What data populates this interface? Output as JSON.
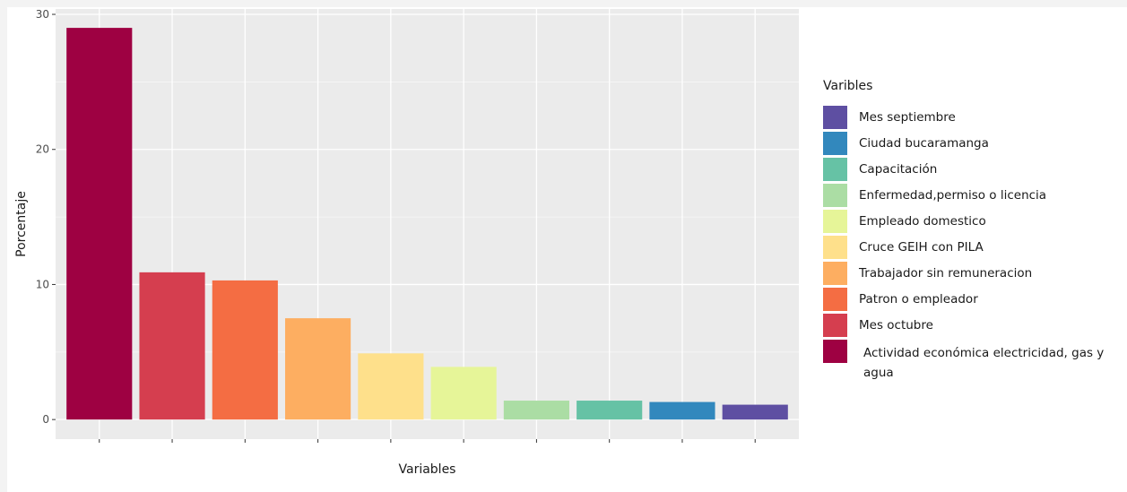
{
  "chart_data": {
    "type": "bar",
    "xlabel": "Variables",
    "ylabel": "Porcentaje",
    "ylim": [
      0,
      30
    ],
    "yticks": [
      0,
      10,
      20,
      30
    ],
    "grid": true,
    "legend": {
      "title": "Varibles",
      "placement": "right"
    },
    "categories": [
      "Actividad económica electricidad, gas y agua",
      "Mes octubre",
      "Patron o empleador",
      "Trabajador sin remuneracion",
      "Cruce GEIH con PILA",
      "Empleado domestico",
      "Enfermedad,permiso o licencia",
      "Capacitación",
      "Ciudad bucaramanga",
      "Mes septiembre"
    ],
    "values": [
      29.0,
      10.9,
      10.3,
      7.5,
      4.9,
      3.9,
      1.4,
      1.4,
      1.3,
      1.1
    ],
    "colors": [
      "#9e0142",
      "#d53e4f",
      "#f46d43",
      "#fdae61",
      "#fee08b",
      "#e6f598",
      "#abdda4",
      "#66c2a5",
      "#3288bd",
      "#5e4fa2"
    ],
    "legend_order": [
      9,
      8,
      7,
      6,
      5,
      4,
      3,
      2,
      1,
      0
    ]
  }
}
